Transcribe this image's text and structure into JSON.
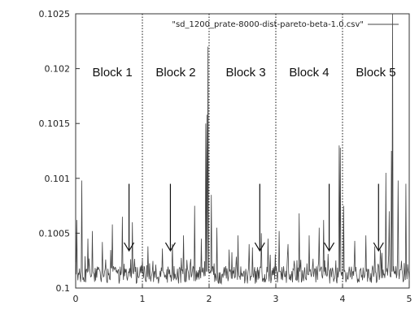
{
  "chart_data": {
    "type": "line",
    "xlim": [
      0,
      5
    ],
    "ylim": [
      0.1,
      0.1025
    ],
    "grid": false,
    "legend": {
      "placement": "top-right",
      "entries": [
        "\"sd_1200_prate-8000-dist-pareto-beta-1.0.csv\""
      ]
    },
    "x_ticks": [
      0,
      1,
      2,
      3,
      4,
      5
    ],
    "x_tick_labels": [
      "0",
      "1",
      "2",
      "3",
      "4",
      "5"
    ],
    "y_ticks": [
      0.1,
      0.1005,
      0.101,
      0.1015,
      0.102,
      0.1025
    ],
    "y_tick_labels": [
      "0.1",
      "0.1005",
      "0.101",
      "0.1015",
      "0.102",
      "0.1025"
    ],
    "block_boundaries": [
      1.0,
      2.0,
      3.0,
      4.0
    ],
    "blocks": [
      {
        "label": "Block 1",
        "x_center": 0.55
      },
      {
        "label": "Block 2",
        "x_center": 1.5
      },
      {
        "label": "Block 3",
        "x_center": 2.55
      },
      {
        "label": "Block 4",
        "x_center": 3.5
      },
      {
        "label": "Block 5",
        "x_center": 4.5
      }
    ],
    "arrows": [
      {
        "x": 0.8,
        "y_top": 0.10095,
        "y_bottom": 0.10034
      },
      {
        "x": 1.42,
        "y_top": 0.10095,
        "y_bottom": 0.10034
      },
      {
        "x": 2.76,
        "y_top": 0.10095,
        "y_bottom": 0.10034
      },
      {
        "x": 3.8,
        "y_top": 0.10095,
        "y_bottom": 0.10034
      },
      {
        "x": 4.54,
        "y_top": 0.10095,
        "y_bottom": 0.10034
      }
    ],
    "series": [
      {
        "type": "line",
        "peaks": [
          [
            0.02,
            0.10062
          ],
          [
            0.09,
            0.10098
          ],
          [
            0.18,
            0.10045
          ],
          [
            0.25,
            0.10052
          ],
          [
            0.4,
            0.10042
          ],
          [
            0.55,
            0.10058
          ],
          [
            0.7,
            0.10065
          ],
          [
            0.85,
            0.1006
          ],
          [
            1.08,
            0.10038
          ],
          [
            1.3,
            0.10036
          ],
          [
            1.45,
            0.1004
          ],
          [
            1.62,
            0.10048
          ],
          [
            1.78,
            0.10075
          ],
          [
            1.88,
            0.10045
          ],
          [
            1.95,
            0.1015
          ],
          [
            1.97,
            0.10158
          ],
          [
            1.98,
            0.1022
          ],
          [
            2.03,
            0.10085
          ],
          [
            2.12,
            0.10055
          ],
          [
            2.3,
            0.10035
          ],
          [
            2.43,
            0.10048
          ],
          [
            2.6,
            0.1004
          ],
          [
            2.78,
            0.1005
          ],
          [
            2.88,
            0.10045
          ],
          [
            3.05,
            0.10052
          ],
          [
            3.18,
            0.1004
          ],
          [
            3.35,
            0.10068
          ],
          [
            3.5,
            0.10048
          ],
          [
            3.65,
            0.10055
          ],
          [
            3.72,
            0.10062
          ],
          [
            3.95,
            0.1013
          ],
          [
            3.97,
            0.10128
          ],
          [
            4.02,
            0.10075
          ],
          [
            4.18,
            0.10043
          ],
          [
            4.35,
            0.10048
          ],
          [
            4.48,
            0.10038
          ],
          [
            4.65,
            0.10105
          ],
          [
            4.7,
            0.1007
          ],
          [
            4.73,
            0.10125
          ],
          [
            4.75,
            0.1025
          ],
          [
            4.83,
            0.10098
          ],
          [
            4.95,
            0.10095
          ]
        ],
        "baseline": 0.10012
      }
    ]
  }
}
